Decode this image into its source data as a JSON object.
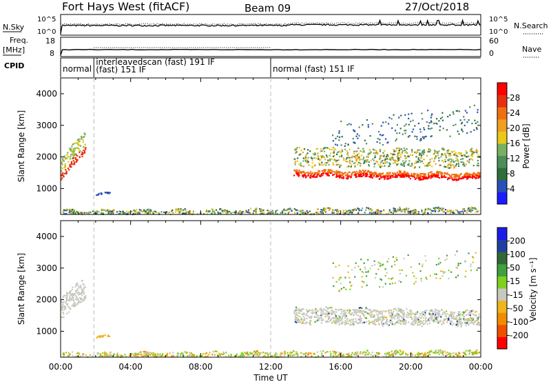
{
  "header": {
    "station": "Fort Hays West (fitACF)",
    "beam": "Beam 09",
    "date": "27/Oct/2018"
  },
  "labels": {
    "nsky": "N.Sky",
    "nsearch": "N.Search",
    "freq_top": "Freq.",
    "freq_unit": "[MHz]",
    "nave": "Nave",
    "cpid": "CPID",
    "xlabel": "Time UT",
    "ylabel": "Slant Range [km]",
    "power_label": "Power [dB]",
    "velocity_label": "Velocity [m s⁻¹]"
  },
  "noise_panel": {
    "left_ticks": [
      "10^5",
      "10^0"
    ],
    "right_ticks": [
      "10^5",
      "10^0"
    ]
  },
  "freq_panel": {
    "left_ticks": [
      "18",
      "8"
    ],
    "right_ticks": [
      "60",
      "0"
    ]
  },
  "cpid": {
    "segments": [
      {
        "start": 0.0,
        "end": 1.9,
        "line1": "normal",
        "line2": ""
      },
      {
        "start": 1.9,
        "end": 12.0,
        "line1": "interleavedscan (fast) 191 IF",
        "line2": "(fast) 151 IF"
      },
      {
        "start": 12.0,
        "end": 24.0,
        "line1": "normal (fast) 151 IF",
        "line2": ""
      }
    ]
  },
  "colorbars": {
    "power": {
      "colors": [
        "#1c1cff",
        "#2850b8",
        "#2e6e3a",
        "#4e8c5a",
        "#78b060",
        "#e8c818",
        "#f0a020",
        "#f07010",
        "#e83010",
        "#ff0000"
      ],
      "tick_labels": [
        "4",
        "8",
        "12",
        "16",
        "20",
        "24",
        "28"
      ]
    },
    "velocity": {
      "colors": [
        "#ff0000",
        "#f05000",
        "#f08c00",
        "#f0b41c",
        "#c8c8c0",
        "#80d020",
        "#40a040",
        "#306838",
        "#2040a0",
        "#1c1ce8"
      ],
      "tick_labels": [
        "-200",
        "-100",
        "-50",
        "-15",
        "15",
        "50",
        "100",
        "200"
      ]
    }
  },
  "chart_data": [
    {
      "type": "heatmap",
      "title": "",
      "xlabel": "Time UT",
      "ylabel": "Slant Range [km]",
      "colorbar_label": "Power [dB]",
      "x_ticks": [
        "00:00",
        "04:00",
        "08:00",
        "12:00",
        "16:00",
        "20:00",
        "00:00"
      ],
      "xlim": [
        0,
        24
      ],
      "ylim": [
        180,
        4500
      ],
      "y_ticks": [
        1000,
        2000,
        3000,
        4000
      ],
      "dashed_lines_x": [
        1.9,
        12.0
      ],
      "regions": [
        {
          "name": "early-echo",
          "x": [
            0.0,
            1.4
          ],
          "y_center": [
            1700,
            2500
          ],
          "color_index": 5
        },
        {
          "name": "ground-scatter-band",
          "x": [
            0.1,
            23.9
          ],
          "y_center": [
            260,
            260
          ],
          "color_index": 3
        },
        {
          "name": "afternoon-strong-band",
          "x": [
            13.3,
            23.9
          ],
          "y_center": [
            1500,
            1400
          ],
          "color_index": 9
        },
        {
          "name": "afternoon-upper",
          "x": [
            13.3,
            23.9
          ],
          "y_center": [
            2100,
            2000
          ],
          "color_index": 4
        },
        {
          "name": "high-range-patchy",
          "x": [
            15.5,
            23.8
          ],
          "y_center": [
            3100,
            3300
          ],
          "color_index": 1
        }
      ]
    },
    {
      "type": "heatmap",
      "title": "",
      "xlabel": "Time UT",
      "ylabel": "Slant Range [km]",
      "colorbar_label": "Velocity [m s⁻¹]",
      "x_ticks": [
        "00:00",
        "04:00",
        "08:00",
        "12:00",
        "16:00",
        "20:00",
        "00:00"
      ],
      "xlim": [
        0,
        24
      ],
      "ylim": [
        180,
        4500
      ],
      "y_ticks": [
        1000,
        2000,
        3000,
        4000
      ],
      "dashed_lines_x": [
        1.9,
        12.0
      ],
      "regions": [
        {
          "name": "early-echo",
          "x": [
            0.0,
            1.4
          ],
          "y_center": [
            1900,
            2400
          ],
          "color_index": 4
        },
        {
          "name": "ground-scatter-band",
          "x": [
            0.1,
            23.9
          ],
          "y_center": [
            260,
            260
          ],
          "color_index": 5
        },
        {
          "name": "afternoon-grey-band",
          "x": [
            13.3,
            23.9
          ],
          "y_center": [
            1500,
            1400
          ],
          "color_index": 4
        },
        {
          "name": "high-range-patchy",
          "x": [
            15.5,
            23.8
          ],
          "y_center": [
            3100,
            3300
          ],
          "color_index": 6
        }
      ]
    }
  ]
}
